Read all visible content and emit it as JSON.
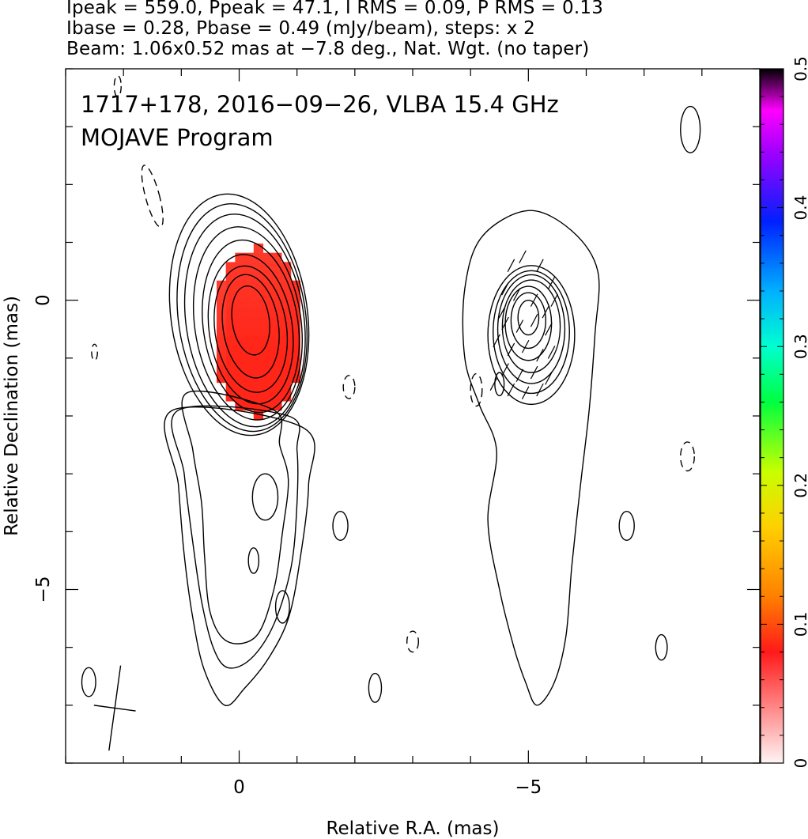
{
  "header": {
    "line1": "Ipeak = 559.0, Ppeak = 47.1, I RMS = 0.09, P RMS = 0.13",
    "line2": "Ibase = 0.28, Pbase = 0.49 (mJy/beam), steps: x 2",
    "line3": "Beam: 1.06x0.52 mas at −7.8 deg., Nat. Wgt. (no taper)"
  },
  "chart_data": {
    "type": "contour",
    "title": "1717+178, 2016−09−26, VLBA 15.4 GHz",
    "subtitle": "MOJAVE Program",
    "xlabel": "Relative R.A. (mas)",
    "ylabel": "Relative Declination (mas)",
    "xlim": [
      3.0,
      -9.0
    ],
    "ylim": [
      -8.0,
      4.0
    ],
    "x_ticks": [
      {
        "value": 0,
        "label": "0"
      },
      {
        "value": -5,
        "label": "−5"
      }
    ],
    "y_ticks": [
      {
        "value": 0,
        "label": "0"
      },
      {
        "value": -5,
        "label": "−5"
      }
    ],
    "colorbar": {
      "range": [
        0,
        0.5
      ],
      "ticks": [
        {
          "value": 0,
          "label": "0"
        },
        {
          "value": 0.1,
          "label": "0.1"
        },
        {
          "value": 0.2,
          "label": "0.2"
        },
        {
          "value": 0.3,
          "label": "0.3"
        },
        {
          "value": 0.4,
          "label": "0.4"
        },
        {
          "value": 0.5,
          "label": "0.5"
        }
      ],
      "stops": [
        {
          "value": 0.0,
          "color": "#fff4f4"
        },
        {
          "value": 0.08,
          "color": "#ff1a1a"
        },
        {
          "value": 0.12,
          "color": "#ff8000"
        },
        {
          "value": 0.17,
          "color": "#ffd000"
        },
        {
          "value": 0.21,
          "color": "#c8ff00"
        },
        {
          "value": 0.26,
          "color": "#00ff40"
        },
        {
          "value": 0.3,
          "color": "#00ffd0"
        },
        {
          "value": 0.34,
          "color": "#00b0ff"
        },
        {
          "value": 0.39,
          "color": "#0020ff"
        },
        {
          "value": 0.44,
          "color": "#a000ff"
        },
        {
          "value": 0.47,
          "color": "#ff00ff"
        },
        {
          "value": 0.5,
          "color": "#000000"
        }
      ]
    },
    "panels": [
      {
        "name": "Stokes I contours with fractional polarization",
        "peak": {
          "x": -0.25,
          "y": -0.35
        },
        "fill": {
          "color": "#ff2a1a",
          "center": {
            "x": -0.25,
            "y": -0.45
          },
          "rx": 0.8,
          "ry": 1.45
        },
        "contours": [
          {
            "cx": -0.2,
            "cy": -0.35,
            "rx": 0.32,
            "ry": 0.6,
            "rot": -8
          },
          {
            "cx": -0.2,
            "cy": -0.45,
            "rx": 0.48,
            "ry": 0.9,
            "rot": -8
          },
          {
            "cx": -0.2,
            "cy": -0.5,
            "rx": 0.62,
            "ry": 1.1,
            "rot": -8
          },
          {
            "cx": -0.2,
            "cy": -0.5,
            "rx": 0.72,
            "ry": 1.3,
            "rot": -8
          },
          {
            "cx": -0.2,
            "cy": -0.45,
            "rx": 0.82,
            "ry": 1.5,
            "rot": -8
          },
          {
            "cx": -0.15,
            "cy": -0.4,
            "rx": 0.92,
            "ry": 1.68,
            "rot": -8
          },
          {
            "cx": -0.1,
            "cy": -0.35,
            "rx": 1.02,
            "ry": 1.85,
            "rot": -8
          },
          {
            "cx": -0.05,
            "cy": -0.3,
            "rx": 1.1,
            "ry": 1.98,
            "rot": -8
          },
          {
            "cx": 0.0,
            "cy": -0.25,
            "rx": 1.18,
            "ry": 2.1,
            "rot": -8
          }
        ],
        "jet_contours": [
          [
            [
              0.9,
              -1.6
            ],
            [
              0.8,
              -2.6
            ],
            [
              0.65,
              -3.5
            ],
            [
              0.6,
              -4.4
            ],
            [
              0.5,
              -5.4
            ],
            [
              0.2,
              -5.9
            ],
            [
              -0.3,
              -5.8
            ],
            [
              -0.6,
              -5.0
            ],
            [
              -0.75,
              -4.0
            ],
            [
              -0.85,
              -3.1
            ],
            [
              -0.7,
              -2.5
            ],
            [
              -0.6,
              -1.9
            ]
          ],
          [
            [
              1.05,
              -1.9
            ],
            [
              0.95,
              -3.0
            ],
            [
              0.8,
              -4.2
            ],
            [
              0.65,
              -5.2
            ],
            [
              0.45,
              -6.0
            ],
            [
              0.2,
              -6.35
            ],
            [
              -0.2,
              -6.2
            ],
            [
              -0.6,
              -5.6
            ],
            [
              -0.9,
              -4.6
            ],
            [
              -1.0,
              -3.5
            ],
            [
              -1.0,
              -2.6
            ],
            [
              -0.85,
              -2.0
            ]
          ],
          [
            [
              1.15,
              -1.9
            ],
            [
              1.05,
              -3.2
            ],
            [
              0.95,
              -4.4
            ],
            [
              0.8,
              -5.5
            ],
            [
              0.6,
              -6.4
            ],
            [
              0.25,
              -7.0
            ],
            [
              -0.1,
              -6.7
            ],
            [
              -0.5,
              -6.2
            ],
            [
              -0.85,
              -5.5
            ],
            [
              -1.05,
              -4.5
            ],
            [
              -1.2,
              -3.2
            ],
            [
              -1.1,
              -2.2
            ]
          ]
        ],
        "islands": [
          {
            "x": -0.45,
            "y": -3.4,
            "rx": 0.22,
            "ry": 0.4
          },
          {
            "x": -0.25,
            "y": -4.5,
            "rx": 0.09,
            "ry": 0.22
          },
          {
            "x": -0.75,
            "y": -5.3,
            "rx": 0.12,
            "ry": 0.28
          }
        ],
        "polarization_ticks": []
      },
      {
        "name": "Stokes I contours with EVPA ticks",
        "peak": {
          "x": -5.0,
          "y": -0.3
        },
        "contours": [
          {
            "cx": -5.0,
            "cy": -0.3,
            "rx": 0.18,
            "ry": 0.3,
            "rot": 0
          },
          {
            "cx": -5.0,
            "cy": -0.35,
            "rx": 0.3,
            "ry": 0.48,
            "rot": 0
          },
          {
            "cx": -5.0,
            "cy": -0.4,
            "rx": 0.4,
            "ry": 0.64,
            "rot": 0
          },
          {
            "cx": -5.05,
            "cy": -0.45,
            "rx": 0.5,
            "ry": 0.8,
            "rot": 0
          },
          {
            "cx": -5.05,
            "cy": -0.5,
            "rx": 0.58,
            "ry": 0.94,
            "rot": 0
          },
          {
            "cx": -5.05,
            "cy": -0.55,
            "rx": 0.66,
            "ry": 1.06,
            "rot": 0
          },
          {
            "cx": -5.05,
            "cy": -0.6,
            "rx": 0.75,
            "ry": 1.2,
            "rot": 0
          }
        ],
        "outer_contour": [
          [
            -5.0,
            1.55
          ],
          [
            -5.75,
            1.2
          ],
          [
            -6.2,
            0.5
          ],
          [
            -6.15,
            -0.6
          ],
          [
            -6.05,
            -1.9
          ],
          [
            -5.9,
            -3.2
          ],
          [
            -5.75,
            -4.6
          ],
          [
            -5.65,
            -5.8
          ],
          [
            -5.45,
            -6.6
          ],
          [
            -5.15,
            -7.0
          ],
          [
            -4.95,
            -6.6
          ],
          [
            -4.75,
            -6.0
          ],
          [
            -4.5,
            -5.0
          ],
          [
            -4.3,
            -3.8
          ],
          [
            -4.45,
            -2.6
          ],
          [
            -4.15,
            -1.8
          ],
          [
            -3.9,
            -1.0
          ],
          [
            -3.9,
            0.2
          ],
          [
            -4.2,
            1.1
          ]
        ],
        "polarization_ticks": [
          {
            "x": -4.7,
            "y": 0.6
          },
          {
            "x": -4.9,
            "y": 0.75
          },
          {
            "x": -5.2,
            "y": 0.6
          },
          {
            "x": -5.4,
            "y": 0.3
          },
          {
            "x": -4.6,
            "y": 0.2
          },
          {
            "x": -4.8,
            "y": 0.1
          },
          {
            "x": -5.1,
            "y": 0.0
          },
          {
            "x": -5.3,
            "y": -0.2
          },
          {
            "x": -4.6,
            "y": -0.4
          },
          {
            "x": -4.85,
            "y": -0.45
          },
          {
            "x": -5.1,
            "y": -0.35
          },
          {
            "x": -5.35,
            "y": -0.5
          },
          {
            "x": -4.45,
            "y": -0.7
          },
          {
            "x": -4.7,
            "y": -0.85
          },
          {
            "x": -4.95,
            "y": -0.8
          },
          {
            "x": -5.2,
            "y": -0.95
          },
          {
            "x": -5.4,
            "y": -0.9
          },
          {
            "x": -4.6,
            "y": -1.2
          },
          {
            "x": -4.85,
            "y": -1.3
          },
          {
            "x": -5.1,
            "y": -1.25
          },
          {
            "x": -5.35,
            "y": -1.35
          },
          {
            "x": -4.7,
            "y": -1.55
          },
          {
            "x": -4.95,
            "y": -1.6
          },
          {
            "x": -5.2,
            "y": -1.55
          },
          {
            "x": -4.4,
            "y": -1.45
          },
          {
            "x": -4.55,
            "y": -0.2
          },
          {
            "x": -5.45,
            "y": 0.0
          }
        ]
      }
    ],
    "noise_islands": [
      {
        "x": 2.1,
        "y": 3.7,
        "rx": 0.06,
        "ry": 0.18,
        "dashed": true
      },
      {
        "x": 1.5,
        "y": 1.8,
        "rx": 0.12,
        "ry": 0.55,
        "dashed": true,
        "rot": -15
      },
      {
        "x": 2.5,
        "y": -0.9,
        "rx": 0.05,
        "ry": 0.14,
        "dashed": true
      },
      {
        "x": -1.9,
        "y": -1.5,
        "rx": 0.1,
        "ry": 0.2,
        "dashed": true
      },
      {
        "x": -4.1,
        "y": -1.55,
        "rx": 0.1,
        "ry": 0.28,
        "dashed": true
      },
      {
        "x": -4.5,
        "y": -1.45,
        "rx": 0.08,
        "ry": 0.2,
        "dashed": false
      },
      {
        "x": -7.75,
        "y": -2.7,
        "rx": 0.12,
        "ry": 0.25,
        "dashed": true
      },
      {
        "x": -1.75,
        "y": -3.9,
        "rx": 0.13,
        "ry": 0.25,
        "dashed": false
      },
      {
        "x": -6.7,
        "y": -3.9,
        "rx": 0.13,
        "ry": 0.25,
        "dashed": false
      },
      {
        "x": -3.0,
        "y": -5.9,
        "rx": 0.1,
        "ry": 0.18,
        "dashed": true
      },
      {
        "x": -2.35,
        "y": -6.7,
        "rx": 0.11,
        "ry": 0.25,
        "dashed": false
      },
      {
        "x": -7.3,
        "y": -6.0,
        "rx": 0.1,
        "ry": 0.22,
        "dashed": false
      },
      {
        "x": -7.8,
        "y": 2.95,
        "rx": 0.17,
        "ry": 0.4,
        "dashed": false
      },
      {
        "x": 2.6,
        "y": -6.6,
        "rx": 0.12,
        "ry": 0.25,
        "dashed": false
      }
    ],
    "beam": {
      "x": 2.15,
      "y": -7.05,
      "major_mas": 1.06,
      "minor_mas": 0.52,
      "pa_deg": -7.8
    }
  }
}
